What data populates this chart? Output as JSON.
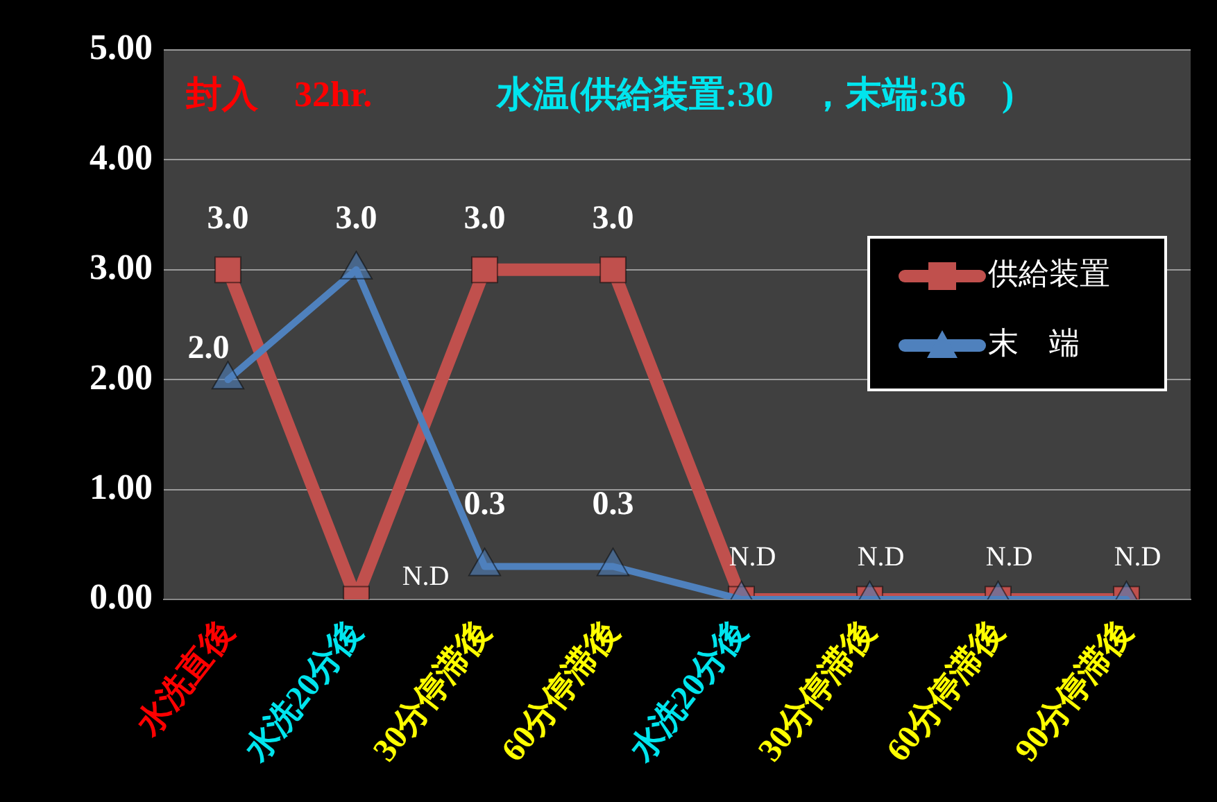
{
  "chart_data": {
    "type": "line",
    "title": "封入　32hr.",
    "subtitle": "水温(供給装置:30　，末端:36　)",
    "categories": [
      "水洗直後",
      "水洗20分後",
      "30分停滞後",
      "60分停滞後",
      "水洗20分後",
      "30分停滞後",
      "60分停滞後",
      "90分停滞後"
    ],
    "series": [
      {
        "name": "供給装置",
        "color": "#c0504d",
        "marker": "square",
        "values": [
          3,
          0,
          3,
          3,
          0,
          0,
          0,
          0
        ],
        "value_labels": [
          "3.0",
          "N.D",
          "3.0",
          "3.0",
          "N.D",
          "N.D",
          "N.D",
          "N.D"
        ]
      },
      {
        "name": "末　端",
        "color": "#4f81bd",
        "marker": "triangle",
        "values": [
          2,
          3,
          0.3,
          0.3,
          0,
          0,
          0,
          0
        ],
        "value_labels": [
          "2.0",
          "3.0",
          "0.3",
          "0.3",
          null,
          null,
          null,
          null
        ]
      }
    ],
    "ylim": [
      0,
      5
    ],
    "yticks": [
      {
        "value": 0,
        "label": "0.00"
      },
      {
        "value": 1,
        "label": "1.00"
      },
      {
        "value": 2,
        "label": "2.00"
      },
      {
        "value": 3,
        "label": "3.00"
      },
      {
        "value": 4,
        "label": "4.00"
      },
      {
        "value": 5,
        "label": "5.00"
      }
    ],
    "grid": "y",
    "legend": "top right"
  }
}
